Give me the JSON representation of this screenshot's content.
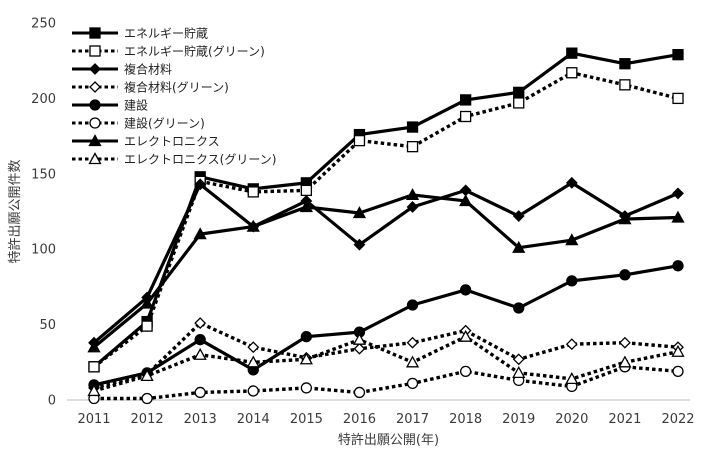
{
  "chart_data": {
    "type": "line",
    "title": "",
    "xlabel": "特許出願公開(年)",
    "ylabel": "特許出願公開件数",
    "x": [
      2011,
      2012,
      2013,
      2014,
      2015,
      2016,
      2017,
      2018,
      2019,
      2020,
      2021,
      2022
    ],
    "xticks": [
      "2011",
      "2012",
      "2013",
      "2014",
      "2015",
      "2016",
      "2017",
      "2018",
      "2019",
      "2020",
      "2021",
      "2022"
    ],
    "ylim": [
      0,
      250
    ],
    "yticks": [
      "0",
      "50",
      "100",
      "150",
      "200",
      "250"
    ],
    "grid": false,
    "legend_position": "top-left",
    "series": [
      {
        "name": "エネルギー貯蔵",
        "line": "solid",
        "marker": "square",
        "filled": true,
        "values": [
          22,
          52,
          148,
          140,
          144,
          176,
          181,
          199,
          204,
          230,
          223,
          229
        ]
      },
      {
        "name": "エネルギー貯蔵(グリーン)",
        "line": "dotted",
        "marker": "square",
        "filled": false,
        "values": [
          22,
          49,
          145,
          138,
          139,
          172,
          168,
          188,
          197,
          217,
          209,
          200
        ]
      },
      {
        "name": "複合材料",
        "line": "solid",
        "marker": "diamond",
        "filled": true,
        "values": [
          38,
          68,
          143,
          115,
          132,
          103,
          128,
          139,
          122,
          144,
          122,
          137
        ]
      },
      {
        "name": "複合材料(グリーン)",
        "line": "dotted",
        "marker": "diamond",
        "filled": false,
        "values": [
          8,
          17,
          51,
          35,
          28,
          34,
          38,
          46,
          27,
          37,
          38,
          35
        ]
      },
      {
        "name": "建設",
        "line": "solid",
        "marker": "circle",
        "filled": true,
        "values": [
          10,
          18,
          40,
          20,
          42,
          45,
          63,
          73,
          61,
          79,
          83,
          89
        ]
      },
      {
        "name": "建設(グリーン)",
        "line": "dotted",
        "marker": "circle",
        "filled": false,
        "values": [
          1,
          1,
          5,
          6,
          8,
          5,
          11,
          19,
          13,
          9,
          22,
          19
        ]
      },
      {
        "name": "エレクトロニクス",
        "line": "solid",
        "marker": "triangle",
        "filled": true,
        "values": [
          35,
          64,
          110,
          115,
          128,
          124,
          136,
          132,
          101,
          106,
          120,
          121
        ]
      },
      {
        "name": "エレクトロニクス(グリーン)",
        "line": "dotted",
        "marker": "triangle",
        "filled": false,
        "values": [
          6,
          16,
          30,
          25,
          27,
          40,
          25,
          42,
          18,
          14,
          25,
          32
        ]
      }
    ]
  }
}
